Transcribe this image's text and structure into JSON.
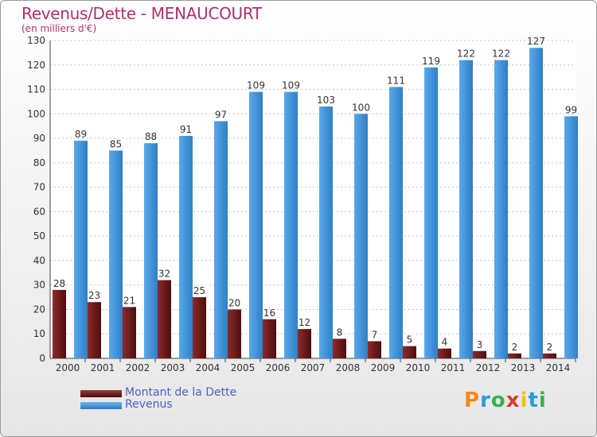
{
  "chart_data": {
    "type": "bar",
    "title": "Revenus/Dette - MENAUCOURT",
    "subtitle": "(en milliers d'€)",
    "categories": [
      "2000",
      "2001",
      "2002",
      "2003",
      "2004",
      "2005",
      "2006",
      "2007",
      "2008",
      "2009",
      "2010",
      "2011",
      "2012",
      "2013",
      "2014"
    ],
    "series": [
      {
        "name": "Montant de la Dette",
        "color": "#6e1a1a",
        "values": [
          28,
          23,
          21,
          32,
          25,
          20,
          16,
          12,
          8,
          7,
          5,
          4,
          3,
          2,
          2
        ]
      },
      {
        "name": "Revenus",
        "color": "#3e8fd8",
        "values": [
          89,
          85,
          88,
          91,
          97,
          109,
          109,
          103,
          100,
          111,
          119,
          122,
          122,
          127,
          99
        ]
      }
    ],
    "ylim": [
      0,
      130
    ],
    "yticks": [
      0,
      10,
      20,
      30,
      40,
      50,
      60,
      70,
      80,
      90,
      100,
      110,
      120,
      130
    ],
    "grid": true,
    "legend": "bottom-left"
  },
  "logo": {
    "letters": [
      "P",
      "r",
      "o",
      "x",
      "i",
      "t",
      "i"
    ],
    "colors": [
      "#f08a1c",
      "#2a9ad8",
      "#3ab04a",
      "#e23a2a",
      "#f0c21c",
      "#2a9ad8",
      "#3ab04a"
    ]
  }
}
